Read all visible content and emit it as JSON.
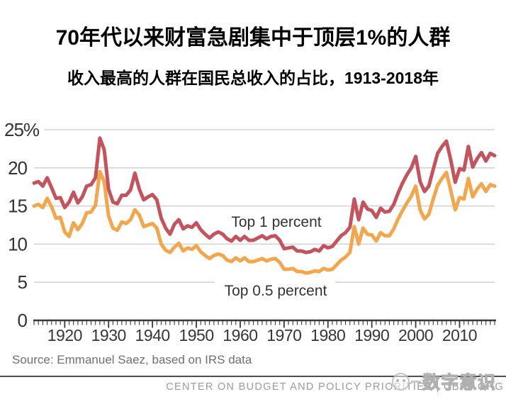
{
  "header": {
    "title": "70年代以来财富急剧集中于顶层1%的人群",
    "subtitle": "收入最高的人群在国民总收入的占比，1913-2018年"
  },
  "chart_data": {
    "type": "line",
    "title": "70年代以来财富急剧集中于顶层1%的人群",
    "subtitle": "收入最高的人群在国民总收入的占比，1913-2018年",
    "x_range": [
      1913,
      2018
    ],
    "x_step": 1,
    "ylim": [
      0,
      25
    ],
    "grid": "horizontal",
    "legend_position": "inline-labels",
    "yticks": [
      {
        "value": 0,
        "label": "0"
      },
      {
        "value": 5,
        "label": "5"
      },
      {
        "value": 10,
        "label": "10"
      },
      {
        "value": 15,
        "label": "15"
      },
      {
        "value": 20,
        "label": "20"
      },
      {
        "value": 25,
        "label": "25%"
      }
    ],
    "xticks": [
      1920,
      1930,
      1940,
      1950,
      1960,
      1970,
      1980,
      1990,
      2000,
      2010
    ],
    "series": [
      {
        "name": "Top 1 percent",
        "color": "#c4535d",
        "values": [
          18.0,
          18.2,
          17.6,
          18.7,
          17.4,
          16.0,
          16.1,
          14.8,
          15.5,
          16.8,
          15.4,
          16.2,
          17.6,
          17.8,
          18.7,
          23.9,
          22.4,
          17.2,
          15.5,
          15.3,
          16.4,
          16.4,
          17.1,
          19.3,
          17.2,
          15.8,
          16.2,
          16.5,
          15.8,
          13.4,
          12.1,
          11.3,
          12.6,
          13.2,
          12.0,
          12.4,
          12.2,
          12.8,
          11.9,
          11.3,
          10.8,
          11.3,
          11.6,
          11.3,
          10.7,
          10.4,
          11.0,
          10.5,
          11.0,
          10.5,
          10.5,
          10.8,
          11.1,
          10.7,
          11.0,
          11.1,
          10.5,
          9.4,
          9.5,
          9.6,
          9.1,
          9.1,
          8.9,
          9.0,
          9.3,
          9.1,
          9.8,
          9.5,
          9.7,
          10.4,
          11.1,
          11.5,
          12.2,
          15.9,
          13.2,
          15.5,
          14.6,
          14.4,
          13.5,
          14.7,
          14.2,
          14.3,
          15.2,
          16.7,
          18.0,
          19.1,
          20.0,
          21.5,
          18.2,
          16.9,
          17.6,
          19.8,
          21.9,
          22.8,
          23.5,
          21.0,
          18.1,
          19.9,
          19.7,
          22.8,
          20.1,
          21.2,
          22.0,
          20.9,
          21.9,
          21.6
        ]
      },
      {
        "name": "Top 0.5 percent",
        "color": "#f4a64c",
        "values": [
          15.0,
          15.2,
          14.8,
          16.0,
          14.9,
          13.4,
          13.5,
          11.6,
          11.0,
          12.8,
          11.9,
          12.7,
          14.1,
          14.2,
          15.1,
          19.5,
          18.2,
          13.7,
          12.1,
          11.8,
          12.9,
          12.7,
          13.2,
          14.5,
          13.8,
          12.3,
          12.5,
          12.7,
          12.1,
          10.0,
          9.2,
          8.9,
          9.6,
          10.1,
          9.1,
          9.5,
          9.3,
          9.8,
          9.0,
          8.5,
          8.1,
          8.5,
          8.7,
          8.5,
          7.9,
          7.7,
          8.2,
          7.8,
          8.2,
          7.7,
          7.7,
          7.9,
          8.1,
          7.8,
          8.0,
          8.1,
          7.6,
          6.7,
          6.7,
          6.8,
          6.4,
          6.4,
          6.2,
          6.3,
          6.5,
          6.4,
          6.8,
          6.6,
          6.7,
          7.3,
          7.9,
          8.3,
          8.9,
          12.3,
          10.0,
          12.1,
          11.3,
          11.2,
          10.4,
          11.5,
          11.1,
          11.1,
          12.0,
          13.3,
          14.4,
          15.4,
          16.3,
          17.6,
          14.5,
          13.3,
          13.9,
          15.9,
          17.7,
          18.6,
          19.4,
          17.0,
          14.5,
          16.1,
          15.9,
          18.6,
          16.2,
          17.2,
          17.9,
          16.9,
          17.8,
          17.6
        ]
      }
    ],
    "colors": {
      "gridline": "#cbcbcb",
      "axis": "#383838",
      "tick_label": "#333333",
      "annotation": "#333333"
    }
  },
  "footer": {
    "source": "Source: Emmanuel Saez, based on IRS data",
    "org": "CENTER ON BUDGET AND POLICY PRIORITIES | CBPP.ORG"
  },
  "watermark": {
    "text": "数字意识",
    "logo": "panda-circle-logo"
  }
}
